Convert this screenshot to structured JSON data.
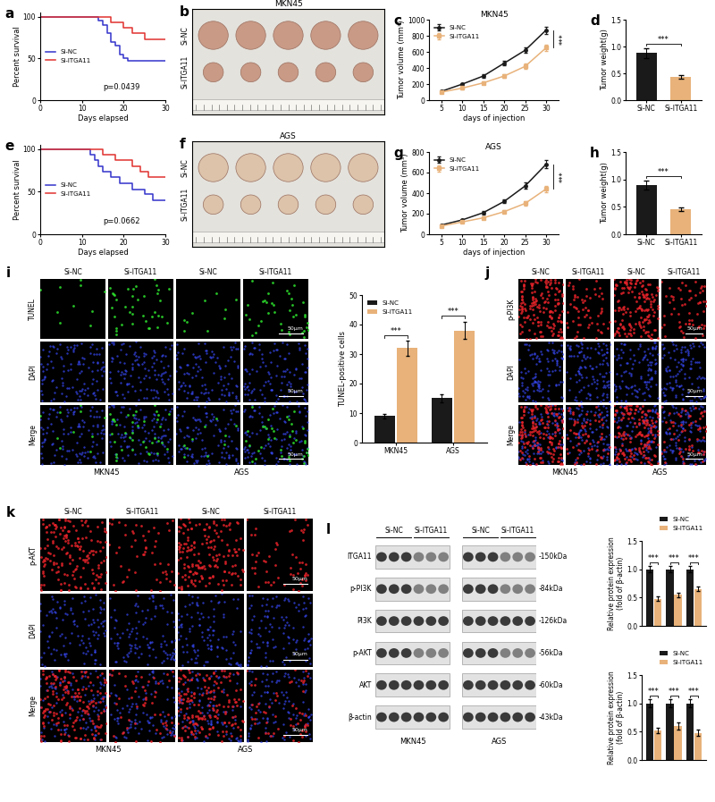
{
  "chart_data": [
    {
      "panel": "a",
      "type": "step",
      "xlabel": "Days elapsed",
      "ylabel": "Percent survival",
      "xlim": [
        0,
        30
      ],
      "xticks": [
        0,
        10,
        20,
        30
      ],
      "ylim": [
        0,
        105
      ],
      "yticks": [
        0,
        50,
        100
      ],
      "legend": "center left",
      "annotation": "p=0.0439",
      "series": [
        {
          "name": "Si-NC",
          "color": "#3333cc",
          "x": [
            0,
            14,
            15,
            16,
            17,
            18,
            19,
            20,
            21,
            30
          ],
          "values": [
            100,
            95,
            90,
            80,
            70,
            65,
            55,
            50,
            47,
            47
          ]
        },
        {
          "name": "Si-ITGA11",
          "color": "#e0322f",
          "x": [
            0,
            17,
            20,
            22,
            25,
            30
          ],
          "values": [
            100,
            93,
            87,
            80,
            73,
            73
          ]
        }
      ]
    },
    {
      "panel": "c",
      "type": "line",
      "title": "MKN45",
      "xlabel": "days of injection",
      "ylabel": "Tumor volume (mm³)",
      "x": [
        5,
        10,
        15,
        20,
        25,
        30
      ],
      "xlim": [
        2,
        33
      ],
      "xticks": [
        5,
        10,
        15,
        20,
        25,
        30
      ],
      "ylim": [
        0,
        1000
      ],
      "yticks": [
        0,
        200,
        400,
        600,
        800,
        1000
      ],
      "legend": "upper left",
      "annotation": "***",
      "series": [
        {
          "name": "Si-NC",
          "color": "#1a1a1a",
          "marker": "circle",
          "values": [
            110,
            200,
            300,
            460,
            620,
            870
          ],
          "errors": [
            10,
            15,
            20,
            30,
            35,
            45
          ]
        },
        {
          "name": "Si-ITGA11",
          "color": "#e8b27a",
          "marker": "square",
          "values": [
            100,
            150,
            215,
            300,
            420,
            650
          ],
          "errors": [
            8,
            12,
            15,
            20,
            30,
            40
          ]
        }
      ]
    },
    {
      "panel": "d",
      "type": "bar",
      "ylabel": "Tumor weight(g)",
      "categories": [
        "Si-NC",
        "Si-ITGA11"
      ],
      "values": [
        0.88,
        0.43
      ],
      "errors": [
        0.09,
        0.03
      ],
      "colors": [
        "#1a1a1a",
        "#e8b27a"
      ],
      "ylim": [
        0,
        1.5
      ],
      "yticks": [
        {
          "value": 0,
          "label": "0.0"
        },
        0.5,
        {
          "value": 1,
          "label": "1.0"
        },
        1.5
      ],
      "annotation": "***"
    },
    {
      "panel": "e",
      "type": "step",
      "xlabel": "Days elapsed",
      "ylabel": "Percent survival",
      "xlim": [
        0,
        30
      ],
      "xticks": [
        0,
        10,
        20,
        30
      ],
      "ylim": [
        0,
        105
      ],
      "yticks": [
        0,
        50,
        100
      ],
      "legend": "center left",
      "annotation": "p=0.0662",
      "series": [
        {
          "name": "Si-NC",
          "color": "#3333cc",
          "x": [
            0,
            12,
            13,
            14,
            15,
            17,
            19,
            22,
            25,
            27,
            30
          ],
          "values": [
            100,
            93,
            87,
            80,
            73,
            67,
            60,
            53,
            47,
            40,
            40
          ]
        },
        {
          "name": "Si-ITGA11",
          "color": "#e0322f",
          "x": [
            0,
            15,
            18,
            22,
            24,
            26,
            30
          ],
          "values": [
            100,
            93,
            87,
            80,
            73,
            67,
            67
          ]
        }
      ]
    },
    {
      "panel": "g",
      "type": "line",
      "title": "AGS",
      "xlabel": "days of injection",
      "ylabel": "Tumor volume (mm³)",
      "x": [
        5,
        10,
        15,
        20,
        25,
        30
      ],
      "xlim": [
        2,
        33
      ],
      "xticks": [
        5,
        10,
        15,
        20,
        25,
        30
      ],
      "ylim": [
        0,
        800
      ],
      "yticks": [
        0,
        200,
        400,
        600,
        800
      ],
      "legend": "upper left",
      "annotation": "***",
      "series": [
        {
          "name": "Si-NC",
          "color": "#1a1a1a",
          "marker": "circle",
          "values": [
            90,
            140,
            210,
            320,
            470,
            680
          ],
          "errors": [
            8,
            12,
            15,
            20,
            30,
            40
          ]
        },
        {
          "name": "Si-ITGA11",
          "color": "#e8b27a",
          "marker": "square",
          "values": [
            80,
            120,
            160,
            220,
            300,
            440
          ],
          "errors": [
            6,
            10,
            12,
            15,
            25,
            30
          ]
        }
      ]
    },
    {
      "panel": "h",
      "type": "bar",
      "ylabel": "Tumor weight(g)",
      "categories": [
        "Si-NC",
        "Si-ITGA11"
      ],
      "values": [
        0.9,
        0.46
      ],
      "errors": [
        0.08,
        0.03
      ],
      "colors": [
        "#1a1a1a",
        "#e8b27a"
      ],
      "ylim": [
        0,
        1.5
      ],
      "yticks": [
        {
          "value": 0,
          "label": "0.0"
        },
        0.5,
        {
          "value": 1,
          "label": "1.0"
        },
        1.5
      ],
      "annotation": "***"
    },
    {
      "type": "bar",
      "ylabel": "TUNEL-positive cells",
      "categories": [
        "MKN45",
        "AGS"
      ],
      "ylim": [
        0,
        50
      ],
      "yticks": [
        0,
        10,
        20,
        30,
        40,
        50
      ],
      "legend": "upper left",
      "annotation": "***",
      "series": [
        {
          "name": "Si-NC",
          "color": "#1a1a1a",
          "values": [
            9,
            15
          ],
          "errors": [
            0.8,
            1.5
          ]
        },
        {
          "name": "Si-ITGA11",
          "color": "#e8b27a",
          "values": [
            32,
            38
          ],
          "errors": [
            2.5,
            3
          ]
        }
      ]
    },
    {
      "type": "bar",
      "ylabel": "Relative protein expression\n(fold of β-actin)",
      "categories": [
        null,
        null,
        null
      ],
      "tick_labels": "y",
      "ylim": [
        0,
        1.5
      ],
      "yticks": [
        {
          "value": 0,
          "label": "0.0"
        },
        0.5,
        {
          "value": 1,
          "label": "1.0"
        },
        1.5
      ],
      "legend": "upper right",
      "annotation": "***",
      "series": [
        {
          "name": "Si-NC",
          "color": "#1a1a1a",
          "values": [
            1,
            1,
            1
          ],
          "errors": [
            0.06,
            0.06,
            0.06
          ]
        },
        {
          "name": "Si-ITGA11",
          "color": "#e8b27a",
          "values": [
            0.48,
            0.55,
            0.65
          ],
          "errors": [
            0.04,
            0.04,
            0.04
          ]
        }
      ]
    },
    {
      "type": "bar",
      "ylabel": "Relative protein expression\n(fold of β-actin)",
      "categories": [
        null,
        null,
        null
      ],
      "tick_labels": "y",
      "ylim": [
        0,
        1.5
      ],
      "yticks": [
        {
          "value": 0,
          "label": "0.0"
        },
        0.5,
        {
          "value": 1,
          "label": "1.0"
        },
        1.5
      ],
      "legend": "upper right",
      "annotation": "***",
      "series": [
        {
          "name": "Si-NC",
          "color": "#1a1a1a",
          "values": [
            1,
            1,
            1
          ],
          "errors": [
            0.07,
            0.07,
            0.07
          ]
        },
        {
          "name": "Si-ITGA11",
          "color": "#e8b27a",
          "values": [
            0.52,
            0.6,
            0.48
          ],
          "errors": [
            0.05,
            0.06,
            0.05
          ]
        }
      ]
    }
  ],
  "photos": [
    {
      "panel": "b",
      "title": "MKN45",
      "rows": [
        "Si-NC",
        "Si-ITGA11"
      ]
    },
    {
      "panel": "f",
      "title": "AGS",
      "rows": [
        "Si-NC",
        "Si-ITGA11"
      ]
    }
  ],
  "micrographs": [
    {
      "panel": "i",
      "columns": [
        "Si-NC",
        "Si-ITGA11",
        "Si-NC",
        "Si-ITGA11"
      ],
      "rows": [
        "TUNEL",
        "DAPI",
        "Merge"
      ],
      "cell_lines": [
        "MKN45",
        "AGS"
      ],
      "scale_bar": "50μm",
      "colors": [
        "#2ee62e",
        "#3a4cff"
      ]
    },
    {
      "panel": "j",
      "columns": [
        "Si-NC",
        "Si-ITGA11",
        "Si-NC",
        "Si-ITGA11"
      ],
      "rows": [
        "p-PI3K",
        "DAPI",
        "Merge"
      ],
      "cell_lines": [
        "MKN45",
        "AGS"
      ],
      "scale_bar": "50μm",
      "colors": [
        "#e8232a",
        "#3a4cff"
      ]
    },
    {
      "panel": "k",
      "columns": [
        "Si-NC",
        "Si-ITGA11",
        "Si-NC",
        "Si-ITGA11"
      ],
      "rows": [
        "p-AKT",
        "DAPI",
        "Merge"
      ],
      "cell_lines": [
        "MKN45",
        "AGS"
      ],
      "scale_bar": "50μm",
      "colors": [
        "#e8232a",
        "#3a4cff"
      ]
    }
  ],
  "blot": {
    "panel": "l",
    "groups": [
      "Si-NC",
      "Si-ITGA11",
      "Si-NC",
      "Si-ITGA11"
    ],
    "cell_lines": [
      "MKN45",
      "AGS"
    ],
    "proteins": [
      "ITGA11",
      "p-PI3K",
      "PI3K",
      "p-AKT",
      "AKT",
      "β-actin"
    ],
    "sizes": [
      "-150kDa",
      "-84kDa",
      "-126kDa",
      "-56kDa",
      "-60kDa",
      "-43kDa"
    ]
  }
}
